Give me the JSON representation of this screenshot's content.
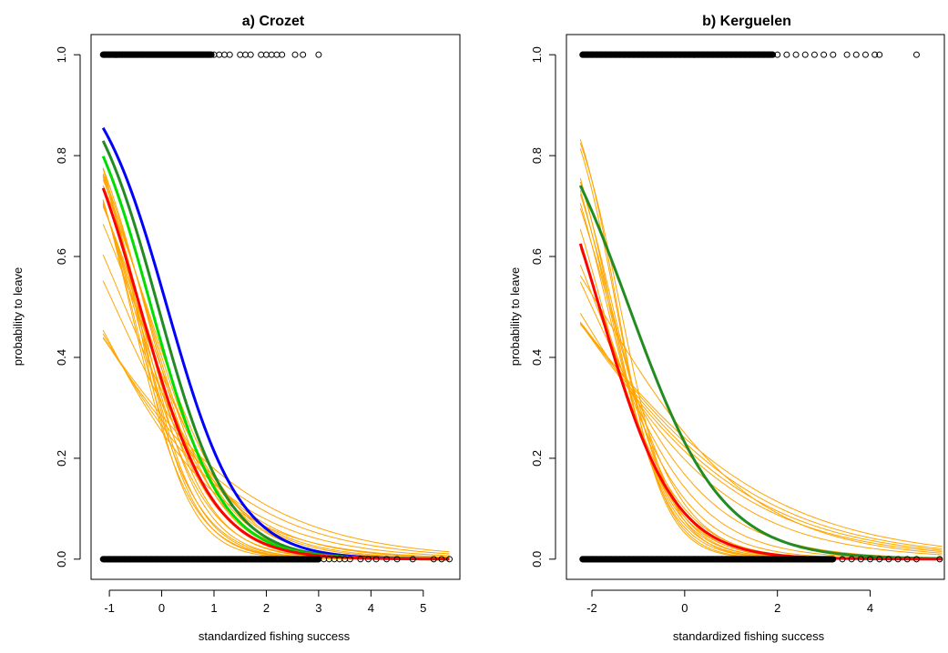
{
  "chart_data": [
    {
      "type": "line",
      "title": "a) Crozet",
      "xlabel": "standardized fishing success",
      "ylabel": "probability to leave",
      "xlim": [
        -1.35,
        5.7
      ],
      "ylim": [
        -0.04,
        1.04
      ],
      "xticks": [
        -1,
        0,
        1,
        2,
        3,
        4,
        5
      ],
      "yticks": [
        0.0,
        0.2,
        0.4,
        0.6,
        0.8,
        1.0
      ],
      "grid": false,
      "legend": "none",
      "x_range": [
        -1.12,
        5.5
      ],
      "highlight_series": [
        {
          "color": "#0000ff",
          "a": 0.15,
          "b": -1.45
        },
        {
          "color": "#228b22",
          "a": -0.1,
          "b": -1.5
        },
        {
          "color": "#00dd00",
          "a": -0.3,
          "b": -1.5
        },
        {
          "color": "#ff0000",
          "a": -0.6,
          "b": -1.45
        }
      ],
      "ensemble_series": {
        "color": "#ffa500",
        "params": [
          {
            "a": -0.92,
            "b": -0.6
          },
          {
            "a": -0.97,
            "b": -0.65
          },
          {
            "a": -1.02,
            "b": -0.72
          },
          {
            "a": -1.08,
            "b": -0.8
          },
          {
            "a": -0.8,
            "b": -0.9
          },
          {
            "a": -0.7,
            "b": -1.0
          },
          {
            "a": -0.55,
            "b": -1.1
          },
          {
            "a": -0.5,
            "b": -1.2
          },
          {
            "a": -0.6,
            "b": -1.3
          },
          {
            "a": -0.4,
            "b": -1.35
          },
          {
            "a": -0.45,
            "b": -1.45
          },
          {
            "a": -0.7,
            "b": -1.4
          },
          {
            "a": -0.8,
            "b": -1.5
          },
          {
            "a": -0.65,
            "b": -1.6
          },
          {
            "a": -0.75,
            "b": -1.7
          },
          {
            "a": -0.85,
            "b": -1.8
          },
          {
            "a": -0.9,
            "b": -1.9
          },
          {
            "a": -1.0,
            "b": -2.0
          },
          {
            "a": -0.35,
            "b": -1.25
          },
          {
            "a": -0.5,
            "b": -1.55
          },
          {
            "a": -0.95,
            "b": -1.65
          },
          {
            "a": -1.05,
            "b": -1.75
          }
        ]
      },
      "points_y1": [
        -1.1,
        -1.05,
        -1.0,
        -0.95,
        -0.9,
        -0.85,
        -0.8,
        -0.75,
        -0.7,
        -0.65,
        -0.6,
        -0.55,
        -0.5,
        -0.45,
        -0.4,
        -0.35,
        -0.3,
        -0.25,
        -0.2,
        -0.15,
        -0.1,
        -0.05,
        0.0,
        0.05,
        0.1,
        0.15,
        0.2,
        0.25,
        0.3,
        0.35,
        0.4,
        0.45,
        0.5,
        0.55,
        0.6,
        0.65,
        0.7,
        0.75,
        0.8,
        0.85,
        0.9,
        0.95,
        1.0,
        1.1,
        1.2,
        1.3,
        1.5,
        1.6,
        1.7,
        1.9,
        2.0,
        2.1,
        2.2,
        2.3,
        2.55,
        2.7,
        3.0
      ],
      "points_y0": [
        -1.1,
        -1.0,
        -0.9,
        -0.8,
        -0.7,
        -0.6,
        -0.5,
        -0.4,
        -0.3,
        -0.2,
        -0.1,
        0.0,
        0.1,
        0.2,
        0.3,
        0.4,
        0.5,
        0.6,
        0.7,
        0.8,
        0.9,
        1.0,
        1.1,
        1.2,
        1.3,
        1.4,
        1.5,
        1.6,
        1.7,
        1.8,
        1.9,
        2.0,
        2.1,
        2.2,
        2.3,
        2.4,
        2.5,
        2.6,
        2.7,
        2.8,
        2.9,
        3.0,
        3.1,
        3.2,
        3.3,
        3.4,
        3.5,
        3.6,
        3.8,
        3.95,
        4.1,
        4.3,
        4.5,
        4.8,
        5.2,
        5.35,
        5.5
      ]
    },
    {
      "type": "line",
      "title": "b) Kerguelen",
      "xlabel": "standardized fishing success",
      "ylabel": "probability to leave",
      "xlim": [
        -2.55,
        5.6
      ],
      "ylim": [
        -0.04,
        1.04
      ],
      "xticks": [
        -2,
        0,
        2,
        4
      ],
      "yticks": [
        0.0,
        0.2,
        0.4,
        0.6,
        0.8,
        1.0
      ],
      "grid": false,
      "legend": "none",
      "x_range": [
        -2.25,
        5.55
      ],
      "highlight_series": [
        {
          "color": "#228b22",
          "a": -1.2,
          "b": -1.0
        },
        {
          "color": "#ff0000",
          "a": -2.3,
          "b": -1.25
        }
      ],
      "ensemble_series": {
        "color": "#ffa500",
        "params": [
          {
            "a": -1.15,
            "b": -0.45
          },
          {
            "a": -1.2,
            "b": -0.48
          },
          {
            "a": -1.25,
            "b": -0.5
          },
          {
            "a": -1.3,
            "b": -0.52
          },
          {
            "a": -1.4,
            "b": -0.6
          },
          {
            "a": -1.1,
            "b": -0.6
          },
          {
            "a": -1.6,
            "b": -0.8
          },
          {
            "a": -1.8,
            "b": -0.95
          },
          {
            "a": -2.0,
            "b": -1.1
          },
          {
            "a": -2.2,
            "b": -1.2
          },
          {
            "a": -2.1,
            "b": -1.3
          },
          {
            "a": -2.4,
            "b": -1.35
          },
          {
            "a": -2.3,
            "b": -1.45
          },
          {
            "a": -2.5,
            "b": -1.5
          },
          {
            "a": -2.6,
            "b": -1.6
          },
          {
            "a": -2.7,
            "b": -1.7
          },
          {
            "a": -2.5,
            "b": -1.8
          },
          {
            "a": -2.8,
            "b": -1.9
          },
          {
            "a": -2.4,
            "b": -1.55
          },
          {
            "a": -2.9,
            "b": -2.0
          }
        ]
      },
      "points_y1": [
        -2.2,
        -2.1,
        -2.0,
        -1.9,
        -1.8,
        -1.7,
        -1.6,
        -1.5,
        -1.4,
        -1.3,
        -1.2,
        -1.1,
        -1.0,
        -0.9,
        -0.8,
        -0.7,
        -0.6,
        -0.5,
        -0.4,
        -0.3,
        -0.2,
        -0.1,
        0.0,
        0.1,
        0.2,
        0.3,
        0.4,
        0.5,
        0.6,
        0.7,
        0.8,
        0.9,
        1.0,
        1.1,
        1.2,
        1.3,
        1.4,
        1.5,
        1.6,
        1.7,
        1.8,
        1.9,
        2.0,
        2.2,
        2.4,
        2.6,
        2.8,
        3.0,
        3.2,
        3.5,
        3.7,
        3.9,
        4.1,
        4.2,
        5.0
      ],
      "points_y0": [
        -2.2,
        -2.1,
        -2.0,
        -1.9,
        -1.8,
        -1.7,
        -1.6,
        -1.5,
        -1.4,
        -1.3,
        -1.2,
        -1.1,
        -1.0,
        -0.9,
        -0.8,
        -0.7,
        -0.6,
        -0.5,
        -0.4,
        -0.3,
        -0.2,
        -0.1,
        0.0,
        0.1,
        0.2,
        0.3,
        0.4,
        0.5,
        0.6,
        0.7,
        0.8,
        0.9,
        1.0,
        1.1,
        1.2,
        1.3,
        1.4,
        1.5,
        1.6,
        1.7,
        1.8,
        1.9,
        2.0,
        2.2,
        2.4,
        2.6,
        2.8,
        3.0,
        3.2,
        3.4,
        3.6,
        3.8,
        4.0,
        4.2,
        4.4,
        4.6,
        4.8,
        5.0,
        5.5
      ]
    }
  ]
}
